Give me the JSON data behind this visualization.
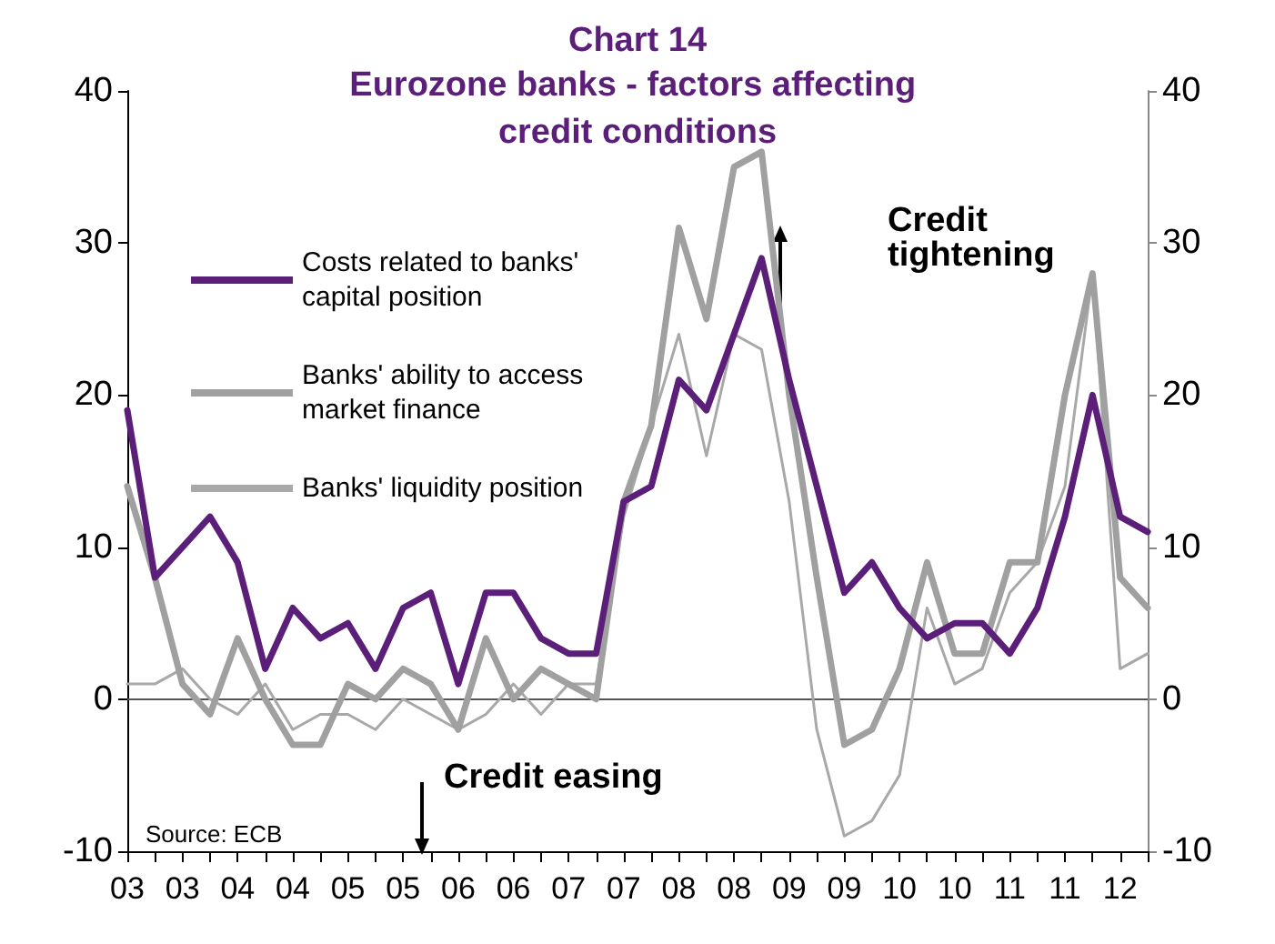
{
  "chart_data": {
    "type": "line",
    "title": "Chart 14",
    "subtitle": "Eurozone banks - factors affecting credit conditions",
    "categories": [
      "03",
      null,
      "03",
      null,
      "04",
      null,
      "04",
      null,
      "05",
      null,
      "05",
      null,
      "06",
      null,
      "06",
      null,
      "07",
      null,
      "07",
      null,
      "08",
      null,
      "08",
      null,
      "09",
      null,
      "09",
      null,
      "10",
      null,
      "10",
      null,
      "11",
      null,
      "11",
      null,
      "12",
      null
    ],
    "series": [
      {
        "name": "Costs related to banks' capital position",
        "color": "#5b1f7a",
        "values": [
          19,
          8,
          10,
          12,
          9,
          2,
          6,
          4,
          5,
          2,
          6,
          7,
          1,
          7,
          7,
          4,
          3,
          3,
          13,
          14,
          21,
          19,
          24,
          29,
          21,
          14,
          7,
          9,
          6,
          4,
          5,
          5,
          3,
          6,
          12,
          20,
          12,
          11
        ]
      },
      {
        "name": "Banks' ability to access market finance",
        "color": "#a0a0a0",
        "values": [
          14,
          8,
          1,
          -1,
          4,
          0,
          -3,
          -3,
          1,
          0,
          2,
          1,
          -2,
          4,
          0,
          2,
          1,
          0,
          13,
          18,
          31,
          25,
          35,
          36,
          20,
          8,
          -3,
          -2,
          2,
          9,
          3,
          3,
          9,
          9,
          20,
          28,
          8,
          6
        ]
      },
      {
        "name": "Banks' liquidity position",
        "color": "#a8a8a8",
        "values": [
          1,
          1,
          2,
          0,
          -1,
          1,
          -2,
          -1,
          -1,
          -2,
          0,
          -1,
          -2,
          -1,
          1,
          -1,
          1,
          1,
          12,
          18,
          24,
          16,
          24,
          23,
          13,
          -2,
          -9,
          -8,
          -5,
          6,
          1,
          2,
          7,
          9,
          14,
          28,
          2,
          3
        ]
      }
    ],
    "ylim": [
      -10,
      40
    ],
    "yticks": [
      -10,
      0,
      10,
      20,
      30,
      40
    ],
    "y2lim": [
      -10,
      40
    ],
    "y2ticks": [
      -10,
      0,
      10,
      20,
      30,
      40
    ],
    "ref_lines": [
      {
        "axis": "y",
        "value": 0,
        "color": "#555555"
      }
    ],
    "annotations": [
      "Credit tightening",
      "Credit easing",
      "Source: ECB"
    ],
    "legend": "top left",
    "grid": false,
    "marker": "none",
    "line_style": "solid"
  }
}
